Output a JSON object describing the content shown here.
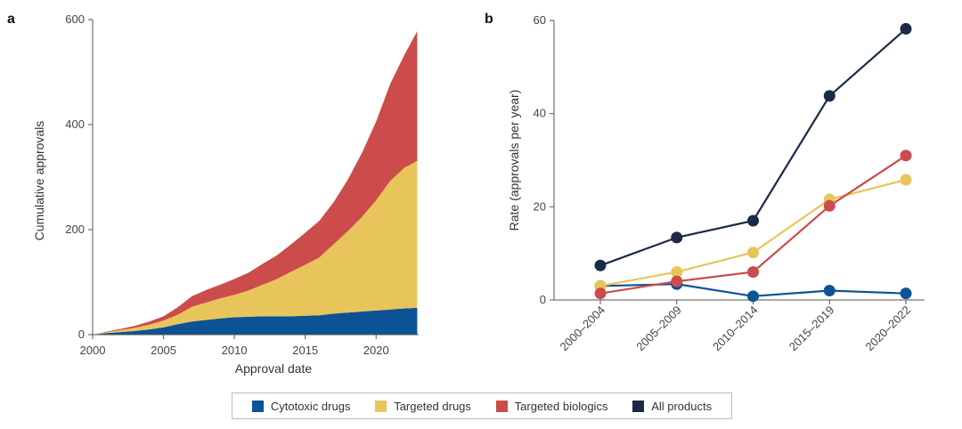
{
  "panels": {
    "a": "a",
    "b": "b"
  },
  "legend": [
    {
      "label": "Cytotoxic drugs",
      "color": "#0b5394"
    },
    {
      "label": "Targeted drugs",
      "color": "#e8c55a"
    },
    {
      "label": "Targeted biologics",
      "color": "#cc4b4b"
    },
    {
      "label": "All products",
      "color": "#1b2a47"
    }
  ],
  "chart_data": [
    {
      "type": "area",
      "stacked": true,
      "xlabel": "Approval date",
      "ylabel": "Cumulative approvals",
      "xlim": [
        2000,
        2023
      ],
      "ylim": [
        0,
        600
      ],
      "xticks": [
        2000,
        2005,
        2010,
        2015,
        2020
      ],
      "yticks": [
        0,
        200,
        400,
        600
      ],
      "x": [
        2000,
        2001,
        2002,
        2003,
        2004,
        2005,
        2006,
        2007,
        2008,
        2009,
        2010,
        2011,
        2012,
        2013,
        2014,
        2015,
        2016,
        2017,
        2018,
        2019,
        2020,
        2021,
        2022,
        2022.9
      ],
      "series": [
        {
          "name": "Cytotoxic drugs",
          "color": "#0b5394",
          "values": [
            0,
            3,
            5,
            7,
            10,
            14,
            20,
            25,
            28,
            31,
            33,
            34,
            35,
            35,
            35,
            36,
            37,
            40,
            42,
            44,
            46,
            48,
            50,
            51
          ]
        },
        {
          "name": "Targeted drugs",
          "color": "#e8c55a",
          "values": [
            0,
            2,
            4,
            6,
            9,
            13,
            18,
            28,
            33,
            38,
            43,
            50,
            60,
            71,
            85,
            97,
            110,
            132,
            155,
            180,
            210,
            245,
            268,
            280
          ]
        },
        {
          "name": "Targeted biologics",
          "color": "#cc4b4b",
          "values": [
            0,
            1,
            2,
            4,
            6,
            8,
            14,
            20,
            24,
            26,
            30,
            34,
            40,
            45,
            52,
            61,
            70,
            80,
            98,
            122,
            150,
            185,
            215,
            247
          ]
        }
      ]
    },
    {
      "type": "line",
      "xlabel": "",
      "ylabel": "Rate (approvals per year)",
      "ylim": [
        0,
        60
      ],
      "yticks": [
        0,
        20,
        40,
        60
      ],
      "categories": [
        "2000–2004",
        "2005–2009",
        "2010–2014",
        "2015–2019",
        "2020–2022"
      ],
      "series": [
        {
          "name": "Cytotoxic drugs",
          "color": "#0b5394",
          "values": [
            3,
            3.4,
            0.8,
            2,
            1.4
          ]
        },
        {
          "name": "Targeted drugs",
          "color": "#e8c55a",
          "values": [
            3,
            6,
            10.2,
            21.6,
            25.8
          ]
        },
        {
          "name": "Targeted biologics",
          "color": "#cc4b4b",
          "values": [
            1.4,
            4,
            6,
            20.2,
            31
          ]
        },
        {
          "name": "All products",
          "color": "#1b2a47",
          "values": [
            7.4,
            13.4,
            17,
            43.8,
            58.2
          ]
        }
      ]
    }
  ]
}
